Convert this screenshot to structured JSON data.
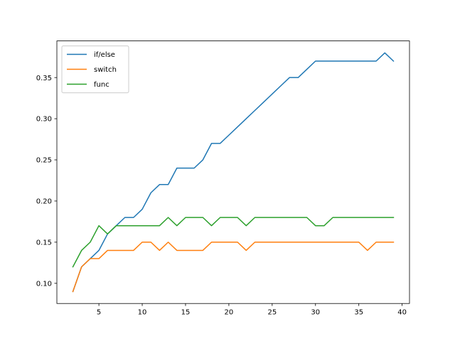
{
  "chart_data": {
    "type": "line",
    "title": "",
    "xlabel": "",
    "ylabel": "",
    "xlim": [
      0.15,
      40.85
    ],
    "ylim": [
      0.0755,
      0.3945
    ],
    "xticks": [
      5,
      10,
      15,
      20,
      25,
      30,
      35,
      40
    ],
    "yticks": [
      0.1,
      0.15,
      0.2,
      0.25,
      0.3,
      0.35
    ],
    "xtick_labels": [
      "5",
      "10",
      "15",
      "20",
      "25",
      "30",
      "35",
      "40"
    ],
    "ytick_labels": [
      "0.10",
      "0.15",
      "0.20",
      "0.25",
      "0.30",
      "0.35"
    ],
    "grid": false,
    "legend_position": "top-left",
    "x": [
      2,
      3,
      4,
      5,
      6,
      7,
      8,
      9,
      10,
      11,
      12,
      13,
      14,
      15,
      16,
      17,
      18,
      19,
      20,
      21,
      22,
      23,
      24,
      25,
      26,
      27,
      28,
      29,
      30,
      31,
      32,
      33,
      34,
      35,
      36,
      37,
      38,
      39
    ],
    "series": [
      {
        "name": "if/else",
        "color": "#1f77b4",
        "values": [
          0.09,
          0.12,
          0.13,
          0.14,
          0.16,
          0.17,
          0.18,
          0.18,
          0.19,
          0.21,
          0.22,
          0.22,
          0.24,
          0.24,
          0.24,
          0.25,
          0.27,
          0.27,
          0.28,
          0.29,
          0.3,
          0.31,
          0.32,
          0.33,
          0.34,
          0.35,
          0.35,
          0.36,
          0.37,
          0.37,
          0.37,
          0.37,
          0.37,
          0.37,
          0.37,
          0.37,
          0.38,
          0.37
        ]
      },
      {
        "name": "switch",
        "color": "#ff7f0e",
        "values": [
          0.09,
          0.12,
          0.13,
          0.13,
          0.14,
          0.14,
          0.14,
          0.14,
          0.15,
          0.15,
          0.14,
          0.15,
          0.14,
          0.14,
          0.14,
          0.14,
          0.15,
          0.15,
          0.15,
          0.15,
          0.14,
          0.15,
          0.15,
          0.15,
          0.15,
          0.15,
          0.15,
          0.15,
          0.15,
          0.15,
          0.15,
          0.15,
          0.15,
          0.15,
          0.14,
          0.15,
          0.15,
          0.15
        ]
      },
      {
        "name": "func",
        "color": "#2ca02c",
        "values": [
          0.12,
          0.14,
          0.15,
          0.17,
          0.16,
          0.17,
          0.17,
          0.17,
          0.17,
          0.17,
          0.17,
          0.18,
          0.17,
          0.18,
          0.18,
          0.18,
          0.17,
          0.18,
          0.18,
          0.18,
          0.17,
          0.18,
          0.18,
          0.18,
          0.18,
          0.18,
          0.18,
          0.18,
          0.17,
          0.17,
          0.18,
          0.18,
          0.18,
          0.18,
          0.18,
          0.18,
          0.18,
          0.18
        ]
      }
    ]
  }
}
